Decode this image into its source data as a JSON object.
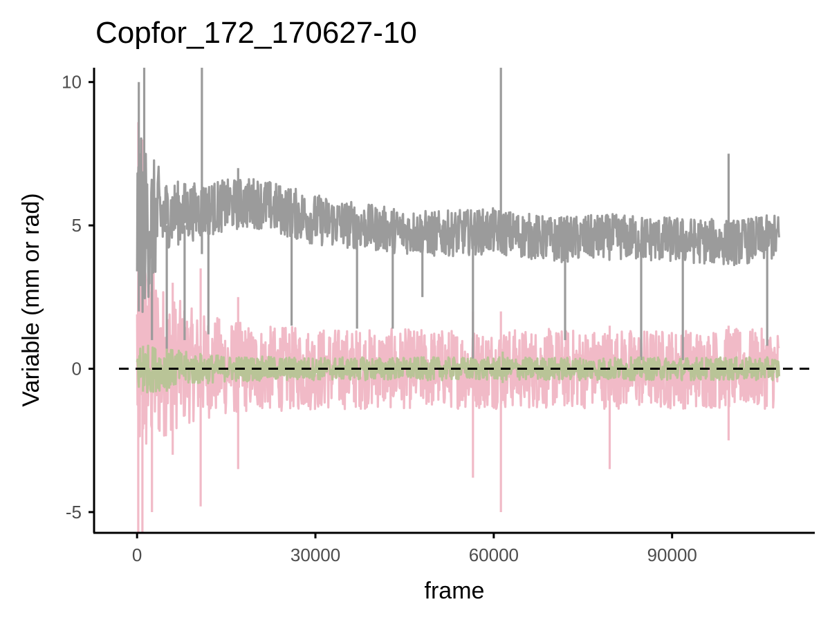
{
  "chart_data": {
    "type": "line",
    "title": "Copfor_172_170627-10",
    "xlabel": "frame",
    "ylabel": "Variable (mm or rad)",
    "xlim": [
      -7000,
      114000
    ],
    "ylim": [
      -5.7,
      10.5
    ],
    "x_ticks": [
      0,
      30000,
      60000,
      90000
    ],
    "x_tick_labels": [
      "0",
      "30000",
      "60000",
      "90000"
    ],
    "y_ticks": [
      -5,
      0,
      5,
      10
    ],
    "y_tick_labels": [
      "-5",
      "0",
      "5",
      "10"
    ],
    "reference_line": {
      "y": 0,
      "style": "dashed",
      "color": "#000000"
    },
    "grid": false,
    "legend": "none",
    "series": [
      {
        "color": "#9b9b9b",
        "x_end": 108000,
        "x": [
          0,
          5000,
          10000,
          15000,
          20000,
          25000,
          30000,
          40000,
          50000,
          60000,
          70000,
          80000,
          90000,
          100000,
          108000
        ],
        "center": [
          4.8,
          5.4,
          5.5,
          5.7,
          5.8,
          5.5,
          5.2,
          4.9,
          4.7,
          4.8,
          4.5,
          4.6,
          4.5,
          4.4,
          4.6
        ],
        "spread": [
          3.5,
          1.2,
          1.0,
          0.9,
          0.9,
          0.9,
          0.9,
          0.8,
          0.8,
          0.8,
          0.8,
          0.8,
          0.8,
          0.8,
          0.8
        ],
        "spikes": [
          [
            1200,
            10.5,
            2.5
          ],
          [
            10900,
            10.5,
            4.0
          ],
          [
            61200,
            10.5,
            4.5
          ],
          [
            99500,
            7.5,
            4.0
          ],
          [
            300,
            10.0,
            2.0
          ],
          [
            2500,
            1.0,
            5.0
          ],
          [
            56500,
            0.3,
            4.5
          ],
          [
            84800,
            0.3,
            4.5
          ],
          [
            91800,
            0.3,
            4.5
          ],
          [
            72000,
            1.0,
            4.5
          ],
          [
            106000,
            0.8,
            4.5
          ],
          [
            17000,
            7.0,
            5.5
          ],
          [
            26000,
            1.5,
            5.5
          ],
          [
            37000,
            1.4,
            5.0
          ],
          [
            43000,
            1.4,
            5.0
          ],
          [
            48000,
            2.5,
            5.0
          ],
          [
            5000,
            0.6,
            5.0
          ],
          [
            8000,
            1.0,
            5.0
          ],
          [
            12000,
            1.2,
            5.0
          ]
        ]
      },
      {
        "color": "#f0b3c1",
        "x_end": 108000,
        "x": [
          0,
          5000,
          10000,
          20000,
          40000,
          60000,
          80000,
          100000,
          108000
        ],
        "center": [
          0.5,
          0.2,
          0.1,
          0.0,
          0.0,
          0.0,
          0.0,
          0.0,
          0.0
        ],
        "spread": [
          4.5,
          2.5,
          1.9,
          1.5,
          1.4,
          1.4,
          1.4,
          1.4,
          1.4
        ],
        "spikes": [
          [
            200,
            8.6,
            -5.7
          ],
          [
            900,
            -5.7,
            8.0
          ],
          [
            2500,
            -5.0,
            3.0
          ],
          [
            10700,
            -4.8,
            3.5
          ],
          [
            17000,
            -3.5,
            2.5
          ],
          [
            56500,
            -3.8,
            2.0
          ],
          [
            61200,
            -5.0,
            2.0
          ],
          [
            79500,
            -3.5,
            1.5
          ],
          [
            99500,
            -2.5,
            1.5
          ],
          [
            6000,
            -3.0,
            3.0
          ]
        ]
      },
      {
        "color": "#b9c497",
        "x_end": 108000,
        "x": [
          0,
          3000,
          8000,
          15000,
          30000,
          60000,
          90000,
          108000
        ],
        "center": [
          0.0,
          0.0,
          0.0,
          0.0,
          0.0,
          0.0,
          0.0,
          0.0
        ],
        "spread": [
          0.9,
          0.8,
          0.6,
          0.45,
          0.4,
          0.4,
          0.4,
          0.4
        ],
        "spikes": [
          [
            1000,
            -0.8,
            0.8
          ],
          [
            5000,
            -0.8,
            0.7
          ],
          [
            61500,
            -0.5,
            0.6
          ]
        ]
      }
    ]
  }
}
